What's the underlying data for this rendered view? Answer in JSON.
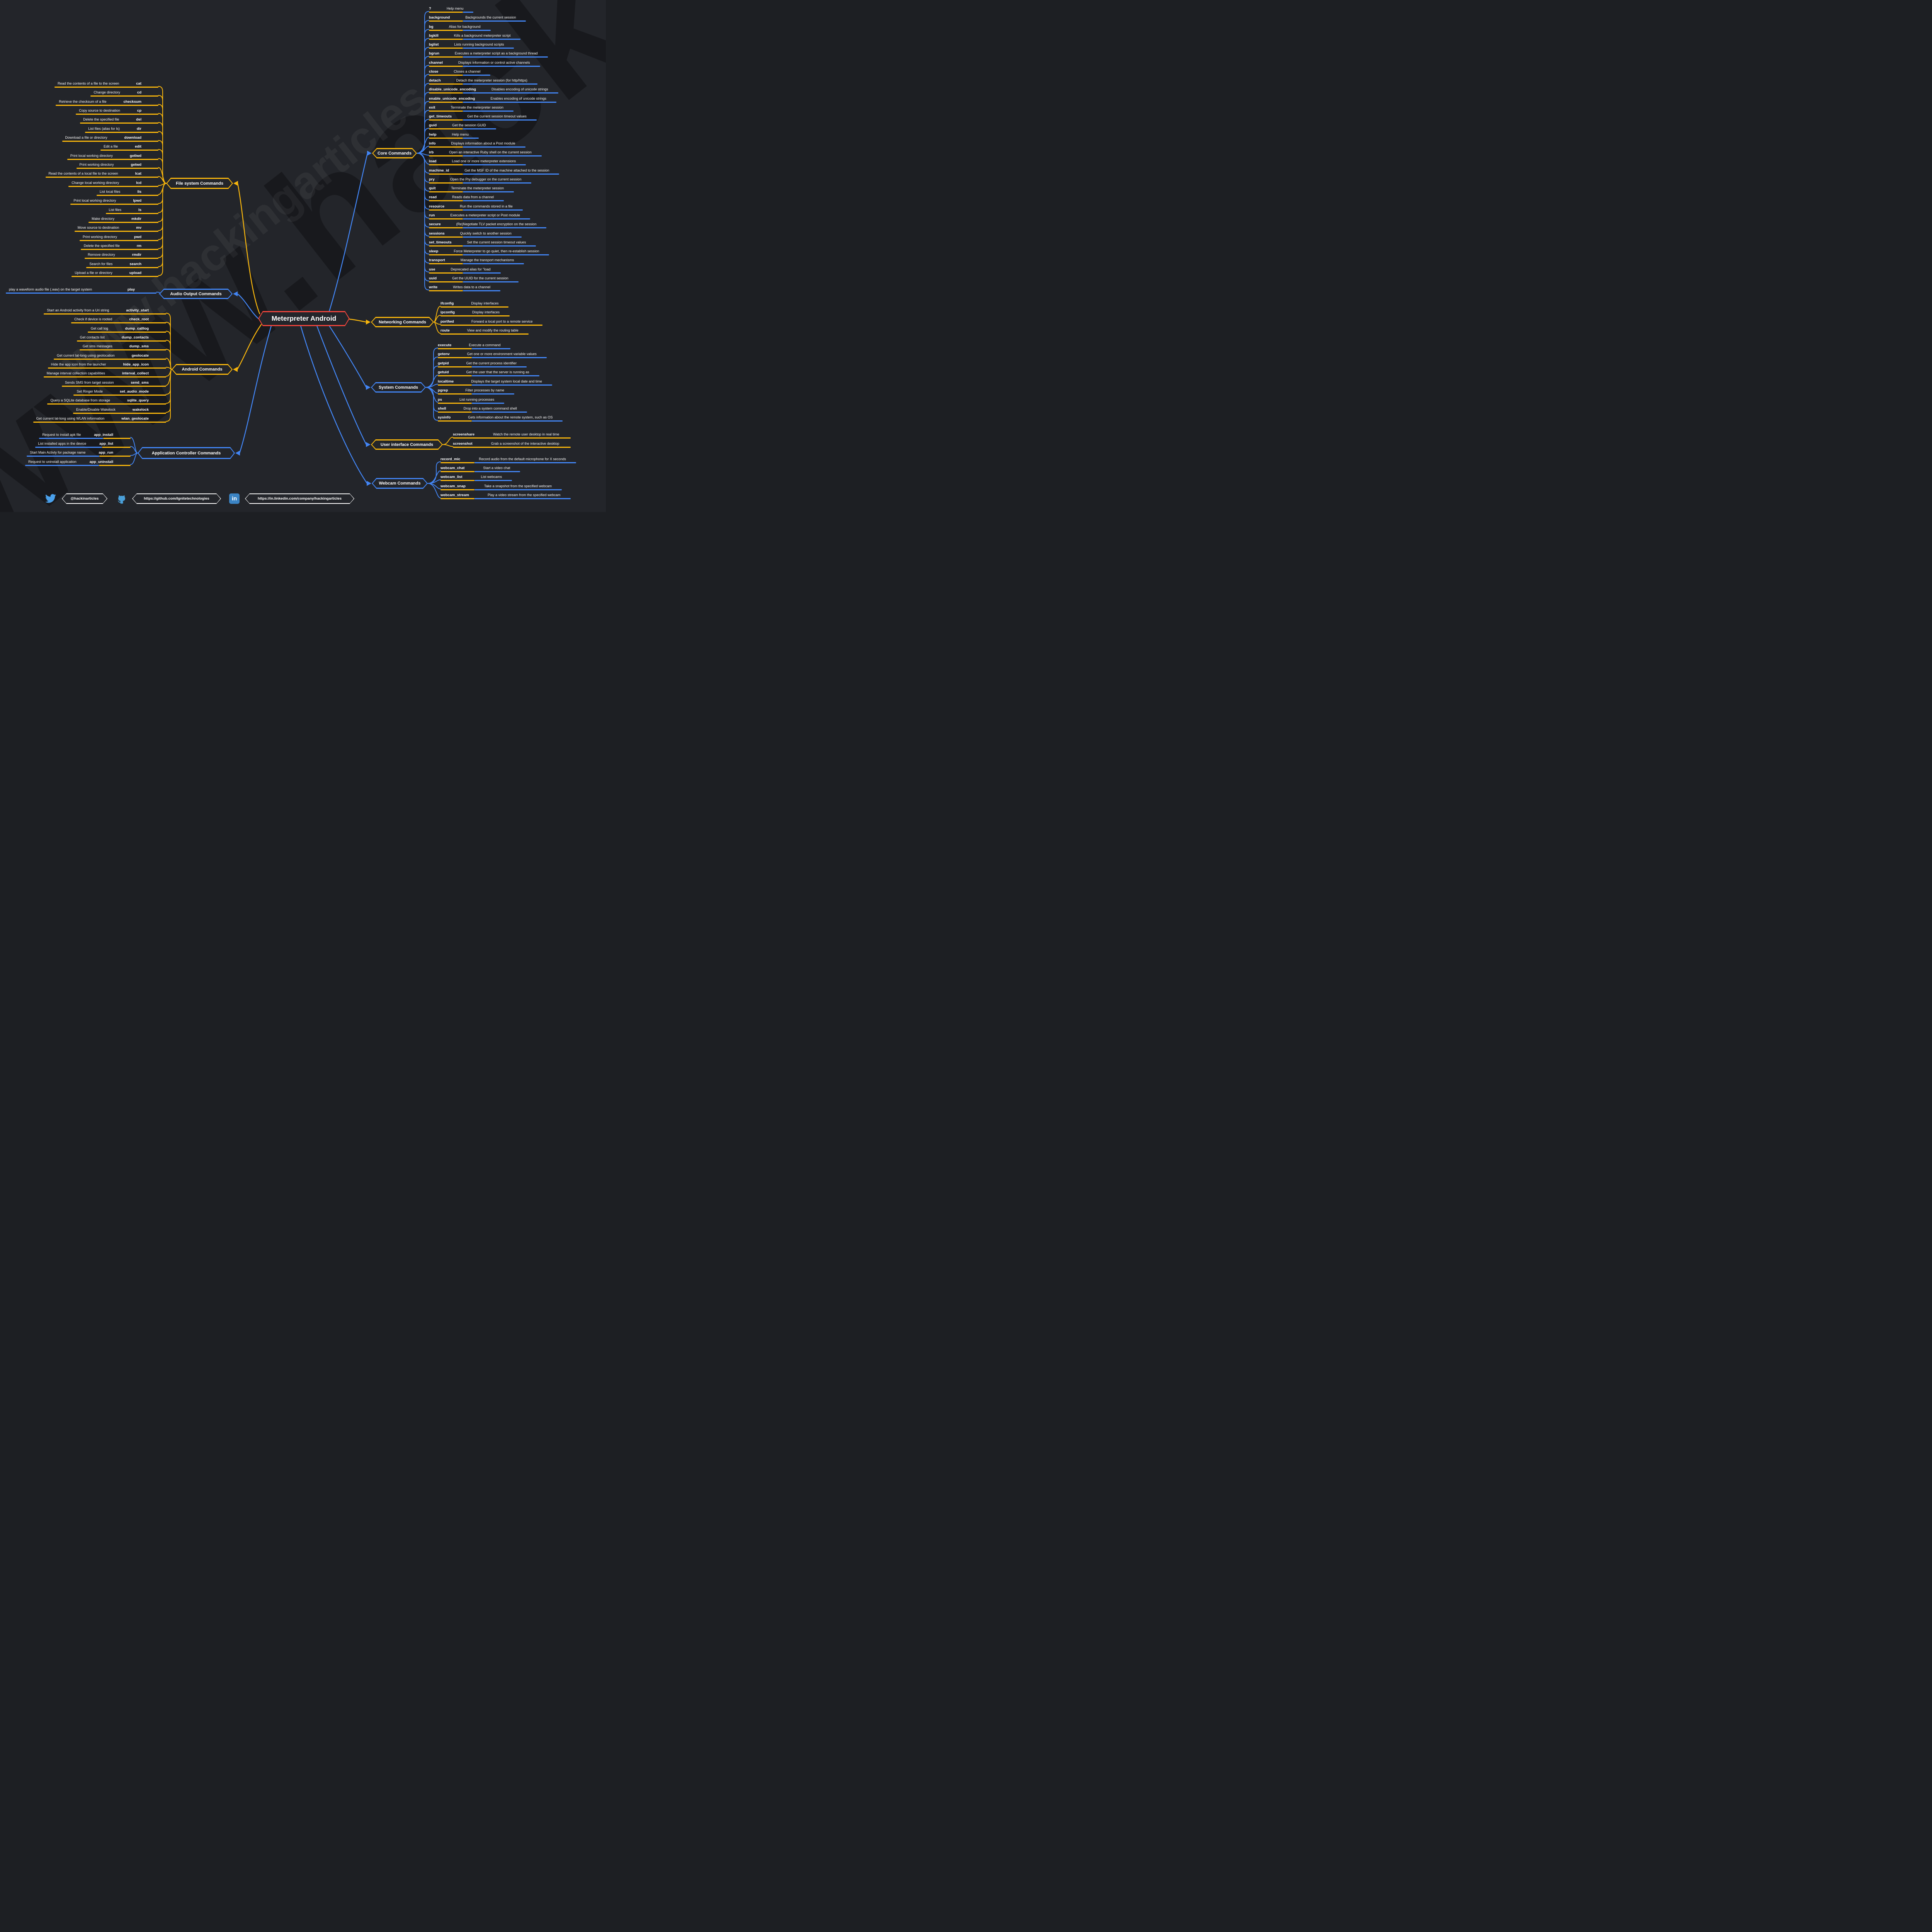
{
  "title": "Meterpreter Android",
  "watermark": "www.hackingarticles",
  "colors": {
    "background": "#23252a",
    "yellow": "#F7B50C",
    "blue": "#4285F4",
    "red": "#F0453C",
    "text": "#FFFFFF",
    "twitter_blue": "#4AA0EB",
    "github_blue": "#4A9FD8",
    "linkedin_blue": "#3B84C4"
  },
  "branches": [
    {
      "id": "core",
      "label": "Core Commands",
      "node_color": "yellow",
      "curve_color": "blue",
      "connector_color": "blue",
      "line_style": "yellow-blue",
      "rows": [
        {
          "cmd": "?",
          "desc": "Help menu"
        },
        {
          "cmd": "background",
          "desc": "Backgrounds the current session"
        },
        {
          "cmd": "bg",
          "desc": "Alias for background"
        },
        {
          "cmd": "bgkill",
          "desc": "Kills a background meterpreter script"
        },
        {
          "cmd": "bglist",
          "desc": "Lists running background scripts"
        },
        {
          "cmd": "bgrun",
          "desc": "Executes a meterpreter script as a background thread"
        },
        {
          "cmd": "channel",
          "desc": "Displays information or control active channels"
        },
        {
          "cmd": "close",
          "desc": "Closes a channel"
        },
        {
          "cmd": "detach",
          "desc": "Detach the meterpreter session (for http/https)"
        },
        {
          "cmd": "disable_unicode_encoding",
          "desc": "Disables encoding of unicode strings"
        },
        {
          "cmd": "enable_unicode_encoding",
          "desc": "Enables encoding of unicode strings"
        },
        {
          "cmd": "exit",
          "desc": "Terminate the meterpreter session"
        },
        {
          "cmd": "get_timeouts",
          "desc": "Get the current session timeout values"
        },
        {
          "cmd": "guid",
          "desc": "Get the session GUID"
        },
        {
          "cmd": "help",
          "desc": "Help menu"
        },
        {
          "cmd": "info",
          "desc": "Displays information about a Post module"
        },
        {
          "cmd": "irb",
          "desc": "Open an interactive Ruby shell on the current session"
        },
        {
          "cmd": "load",
          "desc": "Load one or more meterpreter extensions"
        },
        {
          "cmd": "machine_id",
          "desc": "Get the MSF ID of the machine attached to the session"
        },
        {
          "cmd": "pry",
          "desc": "Open the Pry debugger on the current session"
        },
        {
          "cmd": "quit",
          "desc": "Terminate the meterpreter session"
        },
        {
          "cmd": "read",
          "desc": "Reads data from a channel"
        },
        {
          "cmd": "resource",
          "desc": "Run the commands stored in a file"
        },
        {
          "cmd": "run",
          "desc": "Executes a meterpreter script or Post module"
        },
        {
          "cmd": "secure",
          "desc": "(Re)Negotiate TLV packet encryption on the session"
        },
        {
          "cmd": "sessions",
          "desc": "Quickly switch to another session"
        },
        {
          "cmd": "set_timeouts",
          "desc": "Set the current session timeout values"
        },
        {
          "cmd": "sleep",
          "desc": "Force Meterpreter to go quiet, then re-establish session"
        },
        {
          "cmd": "transport",
          "desc": "Manage the transport mechanisms"
        },
        {
          "cmd": "use",
          "desc": "Deprecated alias for \"load"
        },
        {
          "cmd": "uuid",
          "desc": "Get the UUID for the current session"
        },
        {
          "cmd": "write",
          "desc": "Writes data to a channel"
        }
      ]
    },
    {
      "id": "networking",
      "label": "Networking Commands",
      "node_color": "yellow",
      "curve_color": "yellow",
      "connector_color": "yellow",
      "line_style": "yellow",
      "rows": [
        {
          "cmd": "ifconfig",
          "desc": "Display interfaces"
        },
        {
          "cmd": "ipconfig",
          "desc": "Display interfaces"
        },
        {
          "cmd": "portfwd",
          "desc": "Forward a local port to a remote service"
        },
        {
          "cmd": "route",
          "desc": "View and modify the routing table"
        }
      ]
    },
    {
      "id": "system",
      "label": "System Commands",
      "node_color": "blue",
      "curve_color": "blue",
      "connector_color": "blue",
      "line_style": "yellow-blue",
      "rows": [
        {
          "cmd": "execute",
          "desc": "Execute a command"
        },
        {
          "cmd": "getenv",
          "desc": "Get one or more environment variable values"
        },
        {
          "cmd": "getpid",
          "desc": "Get the current process identifier"
        },
        {
          "cmd": "getuid",
          "desc": "Get the user that the server is running as"
        },
        {
          "cmd": "localtime",
          "desc": "Displays the target system local date and time"
        },
        {
          "cmd": "pgrep",
          "desc": "Filter processes by name"
        },
        {
          "cmd": "ps",
          "desc": "List running processes"
        },
        {
          "cmd": "shell",
          "desc": "Drop into a system command shell"
        },
        {
          "cmd": "sysinfo",
          "desc": "Gets information about the remote system, such as OS"
        }
      ]
    },
    {
      "id": "user_interface",
      "label": "User interface Commands",
      "node_color": "yellow",
      "curve_color": "yellow",
      "connector_color": "blue",
      "line_style": "yellow",
      "rows": [
        {
          "cmd": "screenshare",
          "desc": "Watch the remote user desktop in real time"
        },
        {
          "cmd": "screenshot",
          "desc": "Grab a screenshot of the interactive desktop"
        }
      ]
    },
    {
      "id": "webcam",
      "label": "Webcam Commands",
      "node_color": "blue",
      "curve_color": "blue",
      "connector_color": "blue",
      "line_style": "yellow-blue",
      "rows": [
        {
          "cmd": "record_mic",
          "desc": "Record audio from the default microphone for X seconds"
        },
        {
          "cmd": "webcam_chat",
          "desc": "Start a video chat"
        },
        {
          "cmd": "webcam_list",
          "desc": "List webcams"
        },
        {
          "cmd": "webcam_snap",
          "desc": "Take a snapshot from the specified webcam"
        },
        {
          "cmd": "webcam_stream",
          "desc": "Play a video stream from the specified webcam"
        }
      ]
    },
    {
      "id": "file_system",
      "label": "File system Commands",
      "node_color": "yellow",
      "curve_color": "yellow",
      "connector_color": "yellow",
      "line_style": "yellow",
      "rows": [
        {
          "cmd": "cat",
          "desc": "Read the contents of a file to the screen"
        },
        {
          "cmd": "cd",
          "desc": "Change directory"
        },
        {
          "cmd": "checksum",
          "desc": "Retrieve the checksum of a file"
        },
        {
          "cmd": "cp",
          "desc": "Copy source to destination"
        },
        {
          "cmd": "del",
          "desc": "Delete the specified file"
        },
        {
          "cmd": "dir",
          "desc": "List files (alias for ls)"
        },
        {
          "cmd": "download",
          "desc": "Download a file or directory"
        },
        {
          "cmd": "edit",
          "desc": "Edit a file"
        },
        {
          "cmd": "getlwd",
          "desc": "Print local working directory"
        },
        {
          "cmd": "getwd",
          "desc": "Print working directory"
        },
        {
          "cmd": "lcat",
          "desc": "Read the contents of a local file to the screen"
        },
        {
          "cmd": "lcd",
          "desc": "Change local working directory"
        },
        {
          "cmd": "lls",
          "desc": "List local files"
        },
        {
          "cmd": "lpwd",
          "desc": "Print local working directory"
        },
        {
          "cmd": "ls",
          "desc": "List files"
        },
        {
          "cmd": "mkdir",
          "desc": "Make directory"
        },
        {
          "cmd": "mv",
          "desc": "Move source to destination"
        },
        {
          "cmd": "pwd",
          "desc": "Print working directory"
        },
        {
          "cmd": "rm",
          "desc": "Delete the specified file"
        },
        {
          "cmd": "rmdir",
          "desc": "Remove directory"
        },
        {
          "cmd": "search",
          "desc": "Search for files"
        },
        {
          "cmd": "upload",
          "desc": "Upload a file or directory"
        }
      ]
    },
    {
      "id": "audio",
      "label": "Audio Output Commands",
      "node_color": "blue",
      "curve_color": "blue",
      "connector_color": "blue",
      "line_style": "blue",
      "rows": [
        {
          "cmd": "play",
          "desc": "play a waveform audio file (.wav) on the target system"
        }
      ]
    },
    {
      "id": "android",
      "label": "Android Commands",
      "node_color": "yellow",
      "curve_color": "yellow",
      "connector_color": "yellow",
      "line_style": "yellow",
      "rows": [
        {
          "cmd": "activity_start",
          "desc": "Start an Android activity from a Uri string"
        },
        {
          "cmd": "check_root",
          "desc": "Check if device is rooted"
        },
        {
          "cmd": "dump_calllog",
          "desc": "Get call log"
        },
        {
          "cmd": "dump_contacts",
          "desc": "Get contacts list"
        },
        {
          "cmd": "dump_sms",
          "desc": "Get sms messages"
        },
        {
          "cmd": "geolocate",
          "desc": "Get current lat-long using geolocation"
        },
        {
          "cmd": "hide_app_icon",
          "desc": "Hide the app icon from the launcher"
        },
        {
          "cmd": "interval_collect",
          "desc": "Manage interval collection capabilities"
        },
        {
          "cmd": "send_sms",
          "desc": "Sends SMS from target session"
        },
        {
          "cmd": "set_audio_mode",
          "desc": "Set Ringer Mode"
        },
        {
          "cmd": "sqlite_query",
          "desc": "Query a SQLite database from storage"
        },
        {
          "cmd": "wakelock",
          "desc": "Enable/Disable Wakelock"
        },
        {
          "cmd": "wlan_geolocate",
          "desc": "Get current lat-long using WLAN information"
        }
      ]
    },
    {
      "id": "app_controller",
      "label": "Application Controller Commands",
      "node_color": "blue",
      "curve_color": "blue",
      "connector_color": "blue",
      "line_style": "blue-yellow",
      "rows": [
        {
          "cmd": "app_install",
          "desc": "Request to install apk file"
        },
        {
          "cmd": "app_list",
          "desc": "List installed apps in the device"
        },
        {
          "cmd": "app_run",
          "desc": "Start Main Activty for package name"
        },
        {
          "cmd": "app_uninstall",
          "desc": "Request to uninstall application"
        }
      ]
    }
  ],
  "footer": {
    "twitter": {
      "icon": "twitter-icon",
      "label": "@hackinarticles"
    },
    "github": {
      "icon": "github-icon",
      "label": "https://github.com/Ignitetechnologies"
    },
    "linkedin": {
      "icon": "linkedin-icon",
      "label": "https://in.linkedin.com/company/hackingarticles"
    }
  }
}
